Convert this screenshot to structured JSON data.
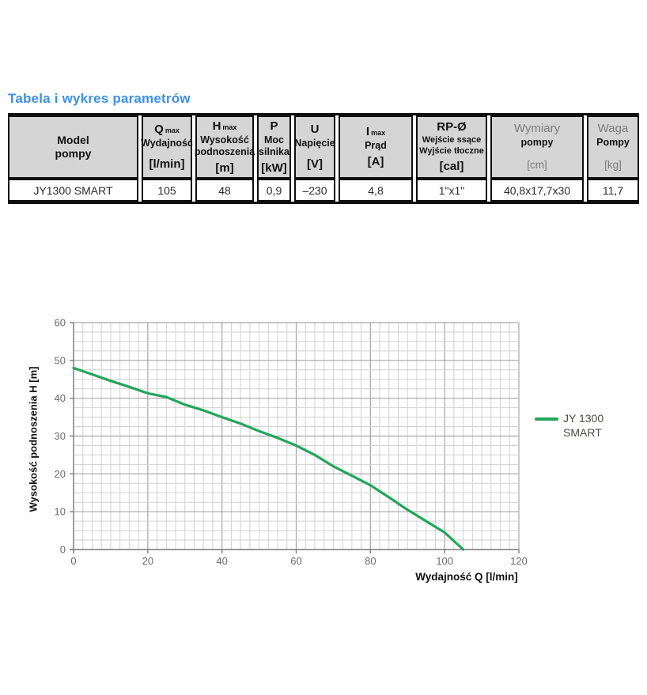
{
  "page": {
    "title": "Tabela i wykres parametrów"
  },
  "colors": {
    "title_blue": "#3f90e0",
    "header_bg": "#d5d5d5",
    "table_border": "#0e0e0e",
    "curve_green": "#23a55a",
    "legend_text": "#4b4b45"
  },
  "table": {
    "columns": [
      {
        "line1": "Model",
        "line2": "pompy"
      },
      {
        "sym": "Q",
        "sub": "max",
        "name": "Wydajność",
        "unit": "[l/min]"
      },
      {
        "sym": "H",
        "sub": "max",
        "name": "Wysokość",
        "name2": "podnoszenia",
        "unit": "[m]"
      },
      {
        "sym": "P",
        "name": "Moc",
        "name2": "silnika",
        "unit": "[kW]"
      },
      {
        "sym": "U",
        "name": "Napięcie",
        "unit": "[V]"
      },
      {
        "sym": "I",
        "sub": "max",
        "name": "Prąd",
        "unit": "[A]"
      },
      {
        "sym": "RP-Ø",
        "name": "Wejście ssące",
        "name2": "Wyjście tłoczne",
        "unit": "[cal]"
      },
      {
        "sym": "Wymiary",
        "name": "pompy",
        "unit": "[cm]"
      },
      {
        "sym": "Waga",
        "name": "Pompy",
        "unit": "[kg]"
      }
    ],
    "row": {
      "cells": [
        "JY1300 SMART",
        "105",
        "48",
        "0,9",
        "–230",
        "4,8",
        "1\"x1\"",
        "40,8x17,7x30",
        "11,7"
      ]
    }
  },
  "chart_data": {
    "type": "line",
    "title": "",
    "xlabel": "Wydajność Q [l/min]",
    "ylabel": "Wysokość podnoszenia H [m]",
    "xlim": [
      0,
      120
    ],
    "ylim": [
      0,
      60
    ],
    "x_ticks": [
      0,
      20,
      40,
      60,
      80,
      100,
      120
    ],
    "y_ticks": [
      0,
      10,
      20,
      30,
      40,
      50,
      60
    ],
    "x_major": 20,
    "y_major": 10,
    "minor_step_x": 2.5,
    "minor_step_y": 2.5,
    "grid": true,
    "legend_position": "right",
    "colors": {
      "grid_minor": "#d2d2d2",
      "grid_major": "#a6a6a6",
      "axis": "#7e7e7e",
      "tick_label": "#6b6b6b"
    },
    "series": [
      {
        "name": "JY 1300 SMART",
        "legend_lines": [
          "JY 1300",
          "SMART"
        ],
        "color": "#23a55a",
        "points": [
          [
            0,
            48
          ],
          [
            5,
            46.3
          ],
          [
            10,
            44.6
          ],
          [
            15,
            43.0
          ],
          [
            20,
            41.3
          ],
          [
            25,
            40.3
          ],
          [
            30,
            38.3
          ],
          [
            35,
            36.8
          ],
          [
            40,
            35.0
          ],
          [
            45,
            33.3
          ],
          [
            50,
            31.3
          ],
          [
            55,
            29.5
          ],
          [
            60,
            27.5
          ],
          [
            65,
            25.0
          ],
          [
            70,
            22.0
          ],
          [
            75,
            19.5
          ],
          [
            80,
            17.0
          ],
          [
            85,
            13.8
          ],
          [
            90,
            10.5
          ],
          [
            95,
            7.5
          ],
          [
            100,
            4.5
          ],
          [
            105,
            0
          ]
        ]
      }
    ]
  }
}
